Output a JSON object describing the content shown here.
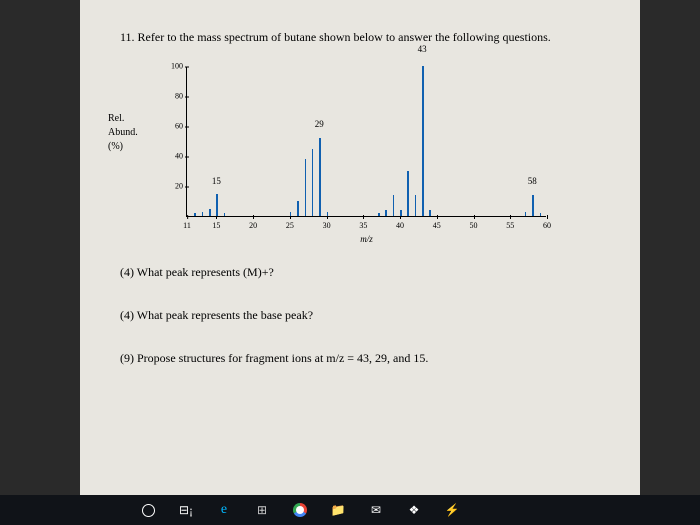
{
  "header": {
    "text": "11.  Refer to the mass spectrum of butane shown below to answer the following questions."
  },
  "chart": {
    "type": "bar",
    "ylabel_l1": "Rel.",
    "ylabel_l2": "Abund.",
    "ylabel_l3": "(%)",
    "xlabel": "m/z",
    "xlim": [
      11,
      60
    ],
    "ylim": [
      0,
      100
    ],
    "yticks": [
      20,
      40,
      60,
      80,
      100
    ],
    "xticks": [
      15,
      20,
      25,
      30,
      35,
      40,
      45,
      50,
      55,
      60
    ],
    "xstart_label": "11",
    "peak_color": "#1060b0",
    "peaks": [
      {
        "mz": 12,
        "h": 2
      },
      {
        "mz": 13,
        "h": 3
      },
      {
        "mz": 14,
        "h": 5
      },
      {
        "mz": 15,
        "h": 15
      },
      {
        "mz": 16,
        "h": 2
      },
      {
        "mz": 25,
        "h": 3
      },
      {
        "mz": 26,
        "h": 10
      },
      {
        "mz": 27,
        "h": 38
      },
      {
        "mz": 28,
        "h": 45
      },
      {
        "mz": 29,
        "h": 52
      },
      {
        "mz": 30,
        "h": 3
      },
      {
        "mz": 37,
        "h": 2
      },
      {
        "mz": 38,
        "h": 4
      },
      {
        "mz": 39,
        "h": 14
      },
      {
        "mz": 40,
        "h": 4
      },
      {
        "mz": 41,
        "h": 30
      },
      {
        "mz": 42,
        "h": 14
      },
      {
        "mz": 43,
        "h": 100
      },
      {
        "mz": 44,
        "h": 4
      },
      {
        "mz": 57,
        "h": 3
      },
      {
        "mz": 58,
        "h": 14
      },
      {
        "mz": 59,
        "h": 2
      }
    ],
    "peak_labels": [
      {
        "mz": 15,
        "text": "15",
        "y": 20
      },
      {
        "mz": 29,
        "text": "29",
        "y": 58
      },
      {
        "mz": 43,
        "text": "43",
        "y": 108
      },
      {
        "mz": 58,
        "text": "58",
        "y": 20
      }
    ]
  },
  "questions": {
    "q1": "(4) What peak represents (M)+?",
    "q2": "(4) What peak represents the base peak?",
    "q3": "(9) Propose structures for fragment ions at m/z = 43, 29, and 15."
  }
}
